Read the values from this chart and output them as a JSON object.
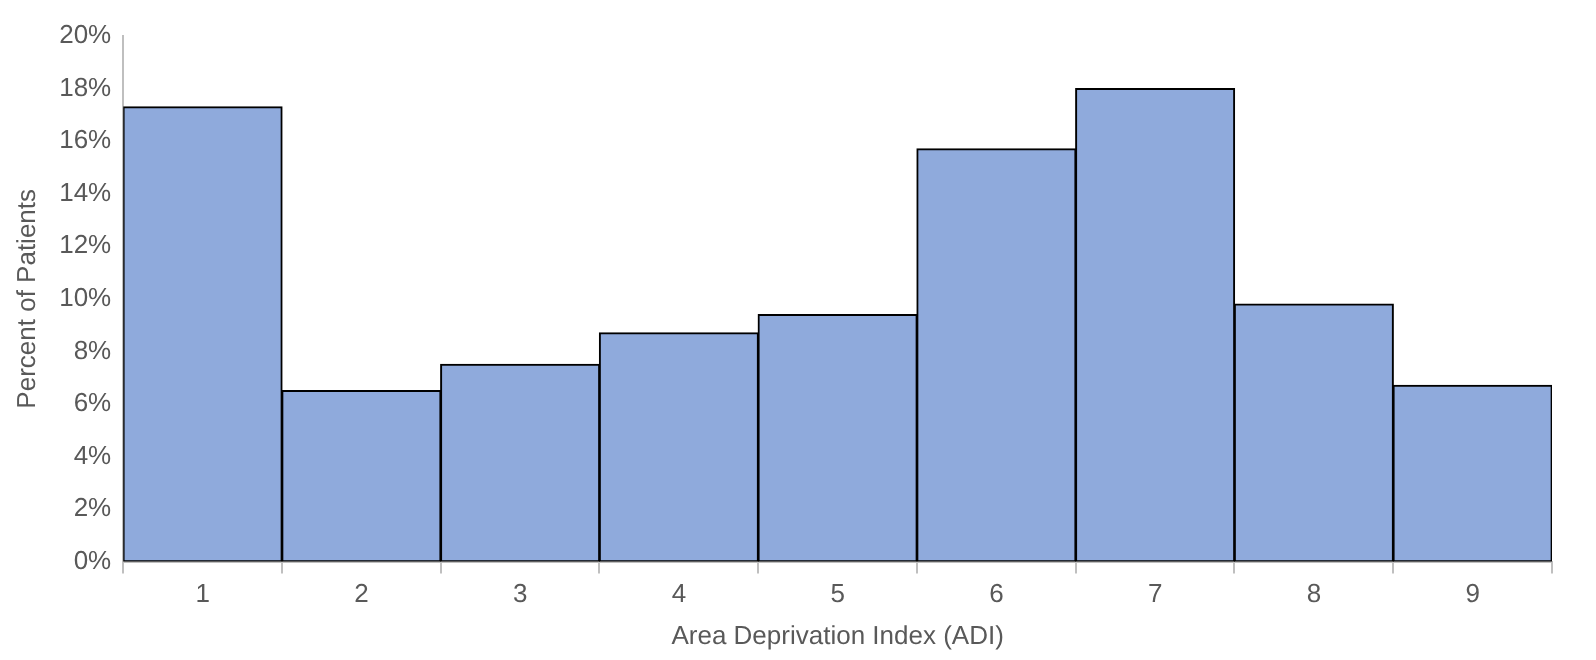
{
  "chart_data": {
    "type": "bar",
    "xlabel": "Area Deprivation Index (ADI)",
    "ylabel": "Percent of Patients",
    "categories": [
      "1",
      "2",
      "3",
      "4",
      "5",
      "6",
      "7",
      "8",
      "9"
    ],
    "values": [
      17.3,
      6.5,
      7.5,
      8.7,
      9.4,
      15.7,
      18.0,
      9.8,
      6.7
    ],
    "color": "#8faadc",
    "ylim": [
      0,
      20
    ],
    "yticks": [
      {
        "value": 0,
        "label": "0%"
      },
      {
        "value": 2,
        "label": "2%"
      },
      {
        "value": 4,
        "label": "4%"
      },
      {
        "value": 6,
        "label": "6%"
      },
      {
        "value": 8,
        "label": "8%"
      },
      {
        "value": 10,
        "label": "10%"
      },
      {
        "value": 12,
        "label": "12%"
      },
      {
        "value": 14,
        "label": "14%"
      },
      {
        "value": 16,
        "label": "16%"
      },
      {
        "value": 18,
        "label": "18%"
      },
      {
        "value": 20,
        "label": "20%"
      }
    ],
    "grid": false,
    "legend": false
  }
}
